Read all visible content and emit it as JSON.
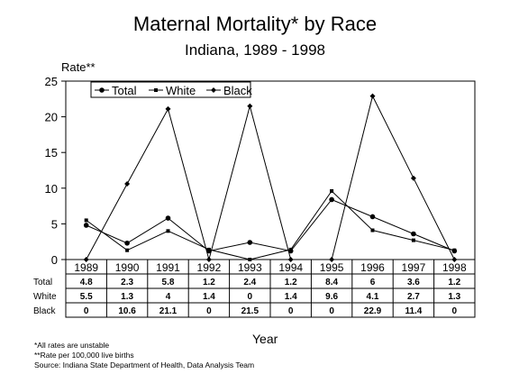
{
  "chart_data": {
    "type": "line",
    "title": "Maternal Mortality* by Race",
    "subtitle": "Indiana, 1989 - 1998",
    "ylabel": "Rate**",
    "xlabel": "Year",
    "ylim": [
      0,
      25
    ],
    "yticks": [
      0,
      5,
      10,
      15,
      20,
      25
    ],
    "categories": [
      "1989",
      "1990",
      "1991",
      "1992",
      "1993",
      "1994",
      "1995",
      "1996",
      "1997",
      "1998"
    ],
    "legend_position": "top-left",
    "series": [
      {
        "name": "Total",
        "marker": "circle",
        "values": [
          4.8,
          2.3,
          5.8,
          1.2,
          2.4,
          1.2,
          8.4,
          6,
          3.6,
          1.2
        ],
        "labels": [
          "4.8",
          "2.3",
          "5.8",
          "1.2",
          "2.4",
          "1.2",
          "8.4",
          "6",
          "3.6",
          "1.2"
        ]
      },
      {
        "name": "White",
        "marker": "square",
        "values": [
          5.5,
          1.3,
          4,
          1.4,
          0,
          1.4,
          9.6,
          4.1,
          2.7,
          1.3
        ],
        "labels": [
          "5.5",
          "1.3",
          "4",
          "1.4",
          "0",
          "1.4",
          "9.6",
          "4.1",
          "2.7",
          "1.3"
        ]
      },
      {
        "name": "Black",
        "marker": "diamond",
        "values": [
          0,
          10.6,
          21.1,
          0,
          21.5,
          0,
          0,
          22.9,
          11.4,
          0
        ],
        "labels": [
          "0",
          "10.6",
          "21.1",
          "0",
          "21.5",
          "0",
          "0",
          "22.9",
          "11.4",
          "0"
        ]
      }
    ],
    "table_row_labels": [
      "Total",
      "White",
      "Black"
    ],
    "notes": [
      "*All rates are unstable",
      "**Rate per 100,000 live births",
      "Source:  Indiana State Department of Health, Data Analysis Team"
    ]
  }
}
